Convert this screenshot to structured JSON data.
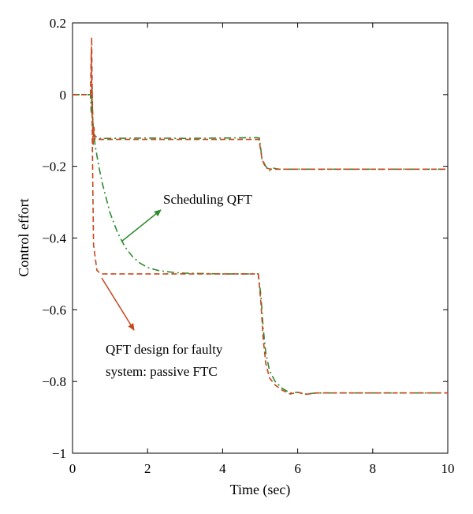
{
  "chart_data": {
    "type": "line",
    "xlabel": "Time (sec)",
    "ylabel": "Control effort",
    "xlim": [
      0,
      10
    ],
    "ylim": [
      -1,
      0.2
    ],
    "xticks": [
      0,
      2,
      4,
      6,
      8,
      10
    ],
    "xtick_labels": [
      "0",
      "2",
      "4",
      "6",
      "8",
      "10"
    ],
    "yticks": [
      0.2,
      0,
      -0.2,
      -0.4,
      -0.6,
      -0.8,
      -1
    ],
    "ytick_labels": [
      "0.2",
      "0",
      "−0.2",
      "−0.4",
      "−0.6",
      "−0.8",
      "−1"
    ],
    "grid": false,
    "series": [
      {
        "name": "Scheduling QFT",
        "color": "#2e8b2e",
        "dash": "dashdot",
        "curves": [
          [
            [
              0,
              0
            ],
            [
              0.48,
              0
            ],
            [
              0.5,
              -0.05
            ],
            [
              0.52,
              0.02
            ],
            [
              0.54,
              -0.08
            ],
            [
              0.56,
              -0.11
            ],
            [
              0.6,
              -0.115
            ],
            [
              0.7,
              -0.122
            ],
            [
              1.0,
              -0.122
            ],
            [
              2.0,
              -0.121
            ],
            [
              3.0,
              -0.122
            ],
            [
              4.0,
              -0.121
            ],
            [
              4.9,
              -0.12
            ],
            [
              4.98,
              -0.121
            ],
            [
              5.05,
              -0.18
            ],
            [
              5.15,
              -0.2
            ],
            [
              5.25,
              -0.212
            ],
            [
              5.35,
              -0.205
            ],
            [
              5.5,
              -0.208
            ],
            [
              6,
              -0.208
            ],
            [
              8,
              -0.208
            ],
            [
              10,
              -0.208
            ]
          ],
          [
            [
              0,
              0
            ],
            [
              0.48,
              0
            ],
            [
              0.5,
              -0.05
            ],
            [
              0.52,
              -0.01
            ],
            [
              0.55,
              -0.09
            ],
            [
              0.6,
              -0.14
            ],
            [
              0.7,
              -0.2
            ],
            [
              0.8,
              -0.25
            ],
            [
              0.9,
              -0.29
            ],
            [
              1.0,
              -0.33
            ],
            [
              1.2,
              -0.385
            ],
            [
              1.4,
              -0.425
            ],
            [
              1.6,
              -0.452
            ],
            [
              1.8,
              -0.47
            ],
            [
              2.0,
              -0.482
            ],
            [
              2.3,
              -0.491
            ],
            [
              2.7,
              -0.496
            ],
            [
              3.0,
              -0.498
            ],
            [
              4.0,
              -0.5
            ],
            [
              4.95,
              -0.5
            ],
            [
              5.02,
              -0.56
            ],
            [
              5.08,
              -0.65
            ],
            [
              5.15,
              -0.72
            ],
            [
              5.25,
              -0.77
            ],
            [
              5.4,
              -0.8
            ],
            [
              5.6,
              -0.82
            ],
            [
              5.8,
              -0.832
            ],
            [
              6.0,
              -0.83
            ],
            [
              6.2,
              -0.835
            ],
            [
              6.5,
              -0.832
            ],
            [
              7,
              -0.832
            ],
            [
              8,
              -0.832
            ],
            [
              10,
              -0.832
            ]
          ]
        ]
      },
      {
        "name": "QFT design for faulty system: passive FTC",
        "color": "#c8461e",
        "dash": "dashed",
        "curves": [
          [
            [
              0,
              0
            ],
            [
              0.48,
              0
            ],
            [
              0.5,
              0.1
            ],
            [
              0.51,
              0.16
            ],
            [
              0.52,
              0.05
            ],
            [
              0.54,
              -0.1
            ],
            [
              0.55,
              -0.14
            ],
            [
              0.57,
              -0.09
            ],
            [
              0.6,
              -0.125
            ],
            [
              0.7,
              -0.125
            ],
            [
              1.0,
              -0.125
            ],
            [
              2.0,
              -0.125
            ],
            [
              3.0,
              -0.125
            ],
            [
              4.0,
              -0.125
            ],
            [
              4.97,
              -0.125
            ],
            [
              5.05,
              -0.18
            ],
            [
              5.15,
              -0.205
            ],
            [
              5.3,
              -0.208
            ],
            [
              6,
              -0.208
            ],
            [
              8,
              -0.208
            ],
            [
              10,
              -0.208
            ]
          ],
          [
            [
              0,
              0
            ],
            [
              0.48,
              0
            ],
            [
              0.5,
              0.12
            ],
            [
              0.52,
              -0.05
            ],
            [
              0.54,
              -0.25
            ],
            [
              0.56,
              -0.42
            ],
            [
              0.6,
              -0.45
            ],
            [
              0.65,
              -0.49
            ],
            [
              0.75,
              -0.5
            ],
            [
              1.0,
              -0.5
            ],
            [
              2.0,
              -0.5
            ],
            [
              3.0,
              -0.5
            ],
            [
              4.0,
              -0.5
            ],
            [
              4.95,
              -0.5
            ],
            [
              5.02,
              -0.58
            ],
            [
              5.08,
              -0.68
            ],
            [
              5.15,
              -0.75
            ],
            [
              5.25,
              -0.79
            ],
            [
              5.4,
              -0.81
            ],
            [
              5.6,
              -0.825
            ],
            [
              5.8,
              -0.835
            ],
            [
              6.0,
              -0.83
            ],
            [
              6.2,
              -0.836
            ],
            [
              6.5,
              -0.832
            ],
            [
              7,
              -0.832
            ],
            [
              8,
              -0.832
            ],
            [
              10,
              -0.832
            ]
          ]
        ]
      }
    ],
    "annotations": [
      {
        "text": "Scheduling QFT",
        "color": "#2e8b2e"
      },
      {
        "text": "QFT design for faulty",
        "color": "#c8461e"
      },
      {
        "text": "system: passive FTC",
        "color": "#c8461e"
      }
    ]
  }
}
